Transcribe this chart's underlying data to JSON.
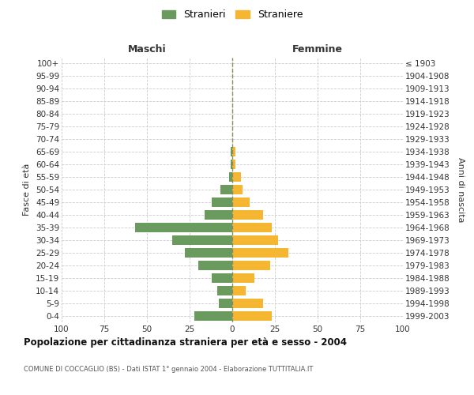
{
  "age_groups": [
    "0-4",
    "5-9",
    "10-14",
    "15-19",
    "20-24",
    "25-29",
    "30-34",
    "35-39",
    "40-44",
    "45-49",
    "50-54",
    "55-59",
    "60-64",
    "65-69",
    "70-74",
    "75-79",
    "80-84",
    "85-89",
    "90-94",
    "95-99",
    "100+"
  ],
  "birth_years": [
    "1999-2003",
    "1994-1998",
    "1989-1993",
    "1984-1988",
    "1979-1983",
    "1974-1978",
    "1969-1973",
    "1964-1968",
    "1959-1963",
    "1954-1958",
    "1949-1953",
    "1944-1948",
    "1939-1943",
    "1934-1938",
    "1929-1933",
    "1924-1928",
    "1919-1923",
    "1914-1918",
    "1909-1913",
    "1904-1908",
    "≤ 1903"
  ],
  "maschi": [
    22,
    8,
    9,
    12,
    20,
    28,
    35,
    57,
    16,
    12,
    7,
    2,
    1,
    1,
    0,
    0,
    0,
    0,
    0,
    0,
    0
  ],
  "femmine": [
    23,
    18,
    8,
    13,
    22,
    33,
    27,
    23,
    18,
    10,
    6,
    5,
    2,
    2,
    0,
    0,
    0,
    0,
    0,
    0,
    0
  ],
  "maschi_color": "#6b9a5e",
  "femmine_color": "#f5b731",
  "grid_color": "#cccccc",
  "dashed_line_color": "#8b8b60",
  "title": "Popolazione per cittadinanza straniera per età e sesso - 2004",
  "subtitle": "COMUNE DI COCCAGLIO (BS) - Dati ISTAT 1° gennaio 2004 - Elaborazione TUTTITALIA.IT",
  "ylabel_left": "Fasce di età",
  "ylabel_right": "Anni di nascita",
  "xlabel_left": "Maschi",
  "xlabel_right": "Femmine",
  "legend_maschi": "Stranieri",
  "legend_femmine": "Straniere",
  "xlim": 100,
  "background_color": "#ffffff",
  "bar_height": 0.75
}
